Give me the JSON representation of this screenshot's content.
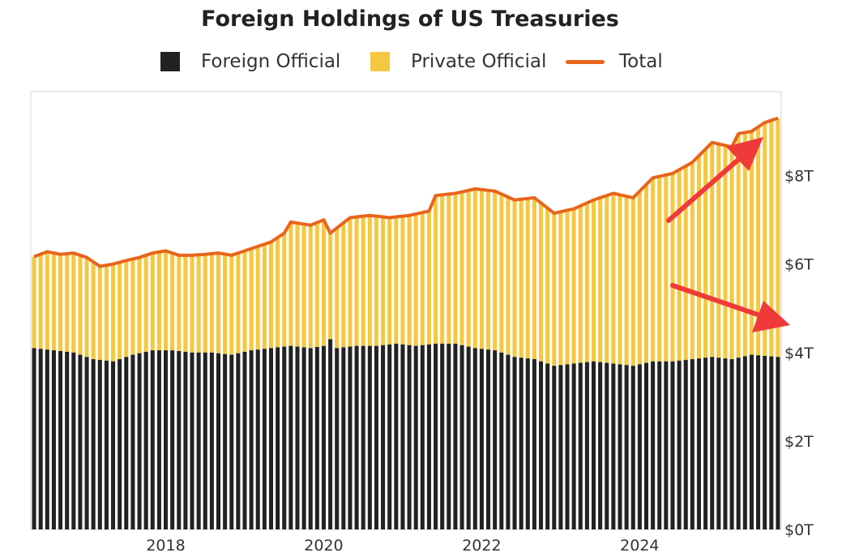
{
  "chart_data": {
    "type": "bar",
    "title": "Foreign Holdings of US Treasuries",
    "stacked": true,
    "legend": {
      "position": "top",
      "items": [
        {
          "label": "Foreign Official",
          "kind": "bar",
          "color": "#222222"
        },
        {
          "label": "Private Official",
          "kind": "bar",
          "color": "#f5c842"
        },
        {
          "label": "Total",
          "kind": "line",
          "color": "#e8651a"
        }
      ]
    },
    "xlim": [
      "2016-05",
      "2025-10"
    ],
    "x_ticks": [
      {
        "label": "2018",
        "date": "2018-01"
      },
      {
        "label": "2020",
        "date": "2020-01"
      },
      {
        "label": "2022",
        "date": "2022-01"
      },
      {
        "label": "2024",
        "date": "2024-01"
      }
    ],
    "ylim": [
      0,
      9.9
    ],
    "y_ticks": [
      {
        "label": "$0T",
        "value": 0
      },
      {
        "label": "$2T",
        "value": 2
      },
      {
        "label": "$4T",
        "value": 4
      },
      {
        "label": "$6T",
        "value": 6
      },
      {
        "label": "$8T",
        "value": 8
      }
    ],
    "y_axis_position": "right",
    "grid": false,
    "anchors": {
      "total": [
        [
          "2016-05",
          6.17
        ],
        [
          "2016-07",
          6.28
        ],
        [
          "2016-09",
          6.22
        ],
        [
          "2016-11",
          6.25
        ],
        [
          "2017-01",
          6.15
        ],
        [
          "2017-03",
          5.95
        ],
        [
          "2017-05",
          6.0
        ],
        [
          "2017-07",
          6.08
        ],
        [
          "2017-09",
          6.15
        ],
        [
          "2017-11",
          6.25
        ],
        [
          "2018-01",
          6.3
        ],
        [
          "2018-03",
          6.2
        ],
        [
          "2018-05",
          6.2
        ],
        [
          "2018-07",
          6.22
        ],
        [
          "2018-09",
          6.25
        ],
        [
          "2018-11",
          6.2
        ],
        [
          "2019-01",
          6.3
        ],
        [
          "2019-03",
          6.4
        ],
        [
          "2019-05",
          6.5
        ],
        [
          "2019-07",
          6.7
        ],
        [
          "2019-08",
          6.95
        ],
        [
          "2019-11",
          6.88
        ],
        [
          "2020-01",
          7.0
        ],
        [
          "2020-02",
          6.7
        ],
        [
          "2020-05",
          7.05
        ],
        [
          "2020-08",
          7.1
        ],
        [
          "2020-11",
          7.05
        ],
        [
          "2021-02",
          7.1
        ],
        [
          "2021-05",
          7.2
        ],
        [
          "2021-06",
          7.55
        ],
        [
          "2021-09",
          7.6
        ],
        [
          "2021-12",
          7.7
        ],
        [
          "2022-03",
          7.65
        ],
        [
          "2022-06",
          7.45
        ],
        [
          "2022-09",
          7.5
        ],
        [
          "2022-12",
          7.15
        ],
        [
          "2023-03",
          7.25
        ],
        [
          "2023-06",
          7.45
        ],
        [
          "2023-09",
          7.6
        ],
        [
          "2023-12",
          7.5
        ],
        [
          "2024-03",
          7.95
        ],
        [
          "2024-06",
          8.05
        ],
        [
          "2024-09",
          8.3
        ],
        [
          "2024-12",
          8.75
        ],
        [
          "2025-03",
          8.65
        ],
        [
          "2025-04",
          8.95
        ],
        [
          "2025-06",
          9.0
        ],
        [
          "2025-08",
          9.2
        ],
        [
          "2025-10",
          9.3
        ]
      ],
      "foreign_official": [
        [
          "2016-05",
          4.1
        ],
        [
          "2016-08",
          4.05
        ],
        [
          "2016-11",
          4.0
        ],
        [
          "2017-02",
          3.85
        ],
        [
          "2017-05",
          3.8
        ],
        [
          "2017-08",
          3.95
        ],
        [
          "2017-11",
          4.05
        ],
        [
          "2018-02",
          4.05
        ],
        [
          "2018-05",
          4.0
        ],
        [
          "2018-08",
          4.0
        ],
        [
          "2018-11",
          3.95
        ],
        [
          "2019-02",
          4.05
        ],
        [
          "2019-05",
          4.1
        ],
        [
          "2019-08",
          4.15
        ],
        [
          "2019-11",
          4.1
        ],
        [
          "2020-01",
          4.15
        ],
        [
          "2020-02",
          4.3
        ],
        [
          "2020-03",
          4.1
        ],
        [
          "2020-06",
          4.15
        ],
        [
          "2020-09",
          4.15
        ],
        [
          "2020-12",
          4.2
        ],
        [
          "2021-03",
          4.15
        ],
        [
          "2021-06",
          4.2
        ],
        [
          "2021-09",
          4.2
        ],
        [
          "2021-12",
          4.1
        ],
        [
          "2022-03",
          4.05
        ],
        [
          "2022-06",
          3.9
        ],
        [
          "2022-09",
          3.85
        ],
        [
          "2022-12",
          3.7
        ],
        [
          "2023-03",
          3.75
        ],
        [
          "2023-06",
          3.8
        ],
        [
          "2023-09",
          3.75
        ],
        [
          "2023-12",
          3.7
        ],
        [
          "2024-03",
          3.8
        ],
        [
          "2024-06",
          3.8
        ],
        [
          "2024-09",
          3.85
        ],
        [
          "2024-12",
          3.9
        ],
        [
          "2025-03",
          3.85
        ],
        [
          "2025-06",
          3.95
        ],
        [
          "2025-10",
          3.9
        ]
      ]
    }
  }
}
